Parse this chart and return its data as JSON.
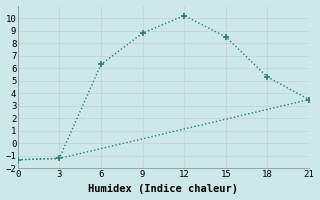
{
  "line1_x": [
    0,
    3,
    6,
    9,
    12,
    15,
    18,
    21
  ],
  "line1_y": [
    -1.3,
    -1.2,
    6.3,
    8.8,
    10.2,
    8.5,
    5.3,
    3.5
  ],
  "line2_x": [
    0,
    3,
    21
  ],
  "line2_y": [
    -1.3,
    -1.2,
    3.5
  ],
  "line_color": "#2e7d6e",
  "bg_color": "#cce8e8",
  "grid_color": "#b8d8d8",
  "xlabel": "Humidex (Indice chaleur)",
  "xlim": [
    0,
    21
  ],
  "ylim": [
    -2,
    11
  ],
  "xticks": [
    0,
    3,
    6,
    9,
    12,
    15,
    18,
    21
  ],
  "yticks": [
    -2,
    -1,
    0,
    1,
    2,
    3,
    4,
    5,
    6,
    7,
    8,
    9,
    10
  ],
  "marker": "+",
  "markersize": 5,
  "linewidth": 1.0,
  "font_family": "monospace",
  "tick_fontsize": 6.5,
  "xlabel_fontsize": 7.5
}
